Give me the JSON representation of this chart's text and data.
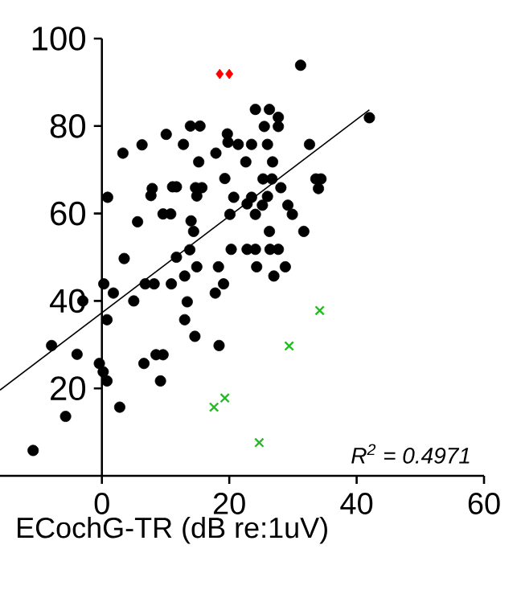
{
  "chart_data": {
    "type": "scatter",
    "xlabel": "ECochG-TR (dB re:1uV)",
    "xlim": [
      -16,
      60
    ],
    "ylim": [
      0,
      100
    ],
    "xticks": [
      0,
      20,
      40,
      60
    ],
    "yticks": [
      20,
      40,
      60,
      80,
      100
    ],
    "grid": false,
    "annotations": [
      "R$^{2}$ = 0.4971"
    ],
    "series": [
      {
        "color": "#000000",
        "marker": "circle",
        "x": [
          0.9,
          3.3,
          5.6,
          6.3,
          7.9,
          7.7,
          9.6,
          10.8,
          10.1,
          11.1,
          11.7,
          12.8,
          13.9,
          15.4,
          14,
          14.4,
          14.9,
          15.2,
          14.7,
          15.7,
          17.9,
          19.7,
          19.8,
          19.3,
          20.1,
          20.7,
          21.4,
          23.5,
          22.6,
          22.8,
          23.5,
          24.1,
          20.3,
          22.8,
          24.1,
          13.8,
          11.7,
          3.5,
          31.2,
          42,
          26.3,
          27.7,
          25.5,
          27.7,
          26,
          32.6,
          26.8,
          25.3,
          26.7,
          33.6,
          34.4,
          34,
          28.1,
          26,
          25.2,
          24.1,
          29.2,
          29.9,
          26.3,
          31.7,
          26.4,
          27.7,
          24.3,
          28.8,
          27,
          -3,
          0.3,
          1.8,
          0.8,
          -7.9,
          -3.9,
          -0.4,
          0.2,
          0.8,
          2.8,
          -5.7,
          -10.8,
          5,
          6.8,
          8.2,
          10.9,
          13,
          14.9,
          13.4,
          13,
          14.6,
          6.6,
          8.5,
          9.6,
          9.2,
          18.3,
          19.1,
          17.8,
          18.4
        ],
        "values": [
          63.7,
          73.8,
          58.1,
          75.7,
          65.7,
          64.1,
          59.9,
          59.9,
          78.1,
          66.1,
          66.1,
          75.8,
          80,
          80,
          58.3,
          55.9,
          64,
          71.8,
          65.9,
          65.9,
          73.8,
          78.2,
          76.3,
          68,
          59.8,
          63.7,
          75.8,
          75.8,
          71.8,
          62.2,
          63.7,
          83.8,
          51.8,
          51.8,
          51.8,
          51.7,
          50,
          49.7,
          93.9,
          81.9,
          83.8,
          82,
          79.9,
          79.9,
          75.8,
          75.8,
          71.8,
          67.9,
          67.9,
          67.9,
          67.9,
          65.7,
          65.9,
          63.9,
          61.9,
          59.8,
          61.9,
          59.8,
          55.9,
          55.9,
          51.8,
          51.8,
          47.8,
          47.8,
          45.7,
          40,
          43.9,
          41.8,
          35.7,
          29.8,
          27.8,
          25.7,
          23.8,
          21.7,
          15.7,
          13.6,
          5.8,
          40,
          43.9,
          43.9,
          43.9,
          45.7,
          47.8,
          39.8,
          35.7,
          31.9,
          25.7,
          27.7,
          27.7,
          21.7,
          47.8,
          43.9,
          41.8,
          29.8
        ]
      },
      {
        "color": "#22bb22",
        "marker": "cross",
        "x": [
          17.6,
          19.3,
          24.7,
          29.4,
          34.2
        ],
        "values": [
          15.7,
          17.8,
          7.6,
          29.7,
          37.8
        ]
      },
      {
        "color": "#ff0000",
        "marker": "diamond",
        "x": [
          18.5,
          20
        ],
        "values": [
          91.9,
          91.9
        ]
      },
      {
        "type": "line",
        "color": "#000000",
        "marker": "none",
        "x": [
          -16,
          42
        ],
        "values": [
          19.6,
          83.7
        ]
      }
    ]
  }
}
